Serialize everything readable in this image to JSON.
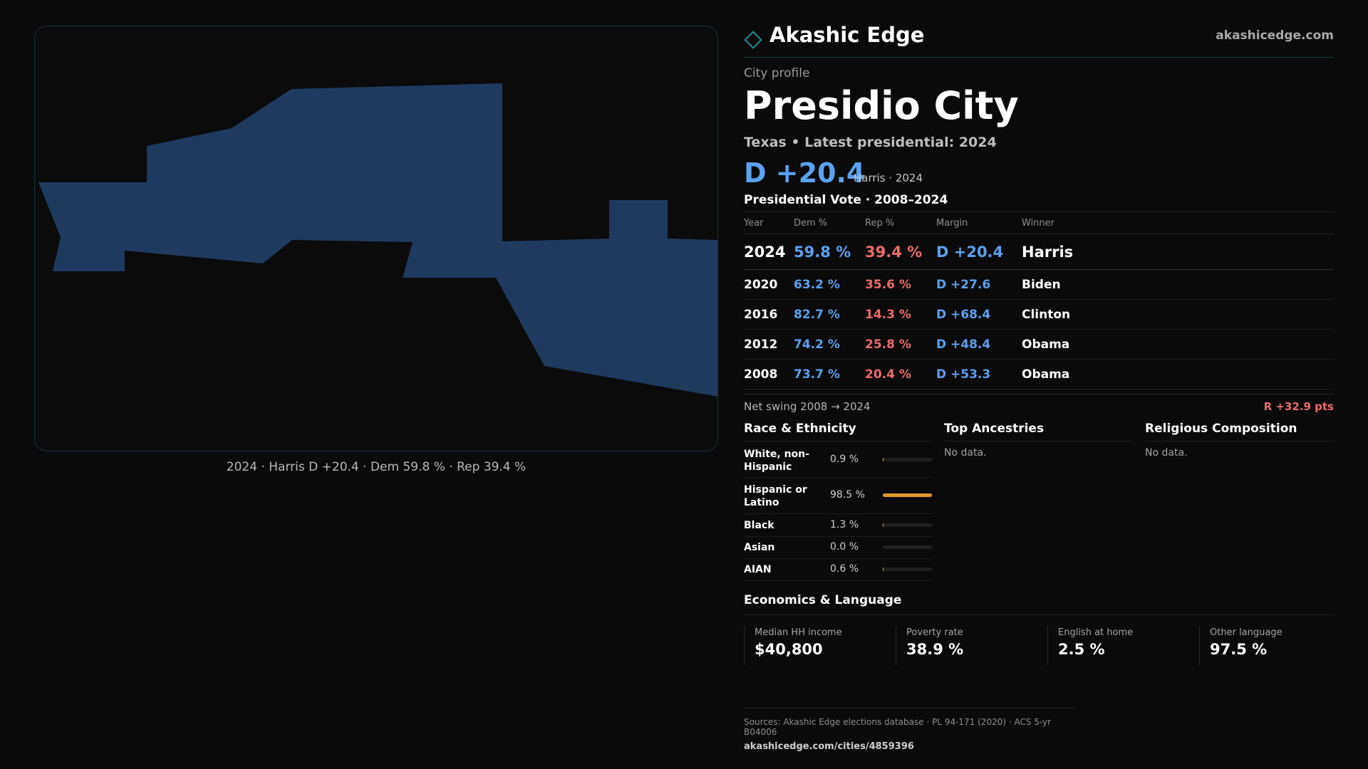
{
  "brand": {
    "name": "Akashic Edge",
    "url": "akashicedge.com"
  },
  "profile": {
    "eyebrow": "City profile",
    "city": "Presidio City",
    "subtitle": "Texas • Latest presidential: 2024",
    "headline_margin": "D +20.4",
    "headline_note": "Harris · 2024"
  },
  "map": {
    "caption": "2024 · Harris D +20.4 · Dem 59.8 % · Rep 39.4 %",
    "fill_color": "#1e3a5f"
  },
  "vote": {
    "title": "Presidential Vote · 2008–2024",
    "columns": [
      "Year",
      "Dem %",
      "Rep %",
      "Margin",
      "Winner"
    ],
    "rows": [
      {
        "year": "2024",
        "dem": "59.8 %",
        "rep": "39.4 %",
        "margin": "D +20.4",
        "winner": "Harris"
      },
      {
        "year": "2020",
        "dem": "63.2 %",
        "rep": "35.6 %",
        "margin": "D +27.6",
        "winner": "Biden"
      },
      {
        "year": "2016",
        "dem": "82.7 %",
        "rep": "14.3 %",
        "margin": "D +68.4",
        "winner": "Clinton"
      },
      {
        "year": "2012",
        "dem": "74.2 %",
        "rep": "25.8 %",
        "margin": "D +48.4",
        "winner": "Obama"
      },
      {
        "year": "2008",
        "dem": "73.7 %",
        "rep": "20.4 %",
        "margin": "D +53.3",
        "winner": "Obama"
      }
    ],
    "swing_label": "Net swing 2008 → 2024",
    "swing_value": "R +32.9 pts"
  },
  "race": {
    "title": "Race & Ethnicity",
    "rows": [
      {
        "label": "White, non-Hispanic",
        "pct": "0.9 %",
        "value": 0.9
      },
      {
        "label": "Hispanic or Latino",
        "pct": "98.5 %",
        "value": 98.5
      },
      {
        "label": "Black",
        "pct": "1.3 %",
        "value": 1.3
      },
      {
        "label": "Asian",
        "pct": "0.0 %",
        "value": 0.0
      },
      {
        "label": "AIAN",
        "pct": "0.6 %",
        "value": 0.6
      }
    ]
  },
  "ancestries": {
    "title": "Top Ancestries",
    "empty": "No data."
  },
  "religion": {
    "title": "Religious Composition",
    "empty": "No data."
  },
  "economics": {
    "title": "Economics & Language",
    "cells": [
      {
        "label": "Median HH income",
        "value": "$40,800"
      },
      {
        "label": "Poverty rate",
        "value": "38.9 %"
      },
      {
        "label": "English at home",
        "value": "2.5 %"
      },
      {
        "label": "Other language",
        "value": "97.5 %"
      }
    ]
  },
  "sources": {
    "line": "Sources: Akashic Edge elections database · PL 94-171 (2020) · ACS 5-yr B04006",
    "url": "akashicedge.com/cities/4859396"
  }
}
